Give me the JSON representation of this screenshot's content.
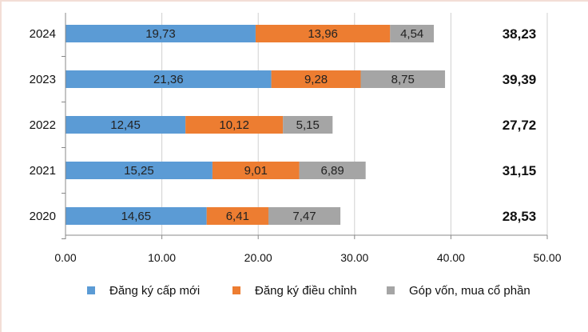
{
  "chart_data": {
    "type": "bar",
    "orientation": "horizontal",
    "stacked": true,
    "categories": [
      "2024",
      "2023",
      "2022",
      "2021",
      "2020"
    ],
    "series": [
      {
        "name": "Đăng ký cấp mới",
        "color": "#5b9bd5",
        "values": [
          19.73,
          21.36,
          12.45,
          15.25,
          14.65
        ],
        "labels": [
          "19,73",
          "21,36",
          "12,45",
          "15,25",
          "14,65"
        ]
      },
      {
        "name": "Đăng ký điều chỉnh",
        "color": "#ed7d31",
        "values": [
          13.96,
          9.28,
          10.12,
          9.01,
          6.41
        ],
        "labels": [
          "13,96",
          "9,28",
          "10,12",
          "9,01",
          "6,41"
        ]
      },
      {
        "name": "Góp vốn, mua cổ phần",
        "color": "#a5a5a5",
        "values": [
          4.54,
          8.75,
          5.15,
          6.89,
          7.47
        ],
        "labels": [
          "4,54",
          "8,75",
          "5,15",
          "6,89",
          "7,47"
        ]
      }
    ],
    "totals": [
      "38,23",
      "39,39",
      "27,72",
      "31,15",
      "28,53"
    ],
    "xlim": [
      0,
      50
    ],
    "xticks": [
      "0.00",
      "10.00",
      "20.00",
      "30.00",
      "40.00",
      "50.00"
    ],
    "xtick_values": [
      0,
      10,
      20,
      30,
      40,
      50
    ],
    "grid": "vertical",
    "legend_position": "bottom"
  }
}
